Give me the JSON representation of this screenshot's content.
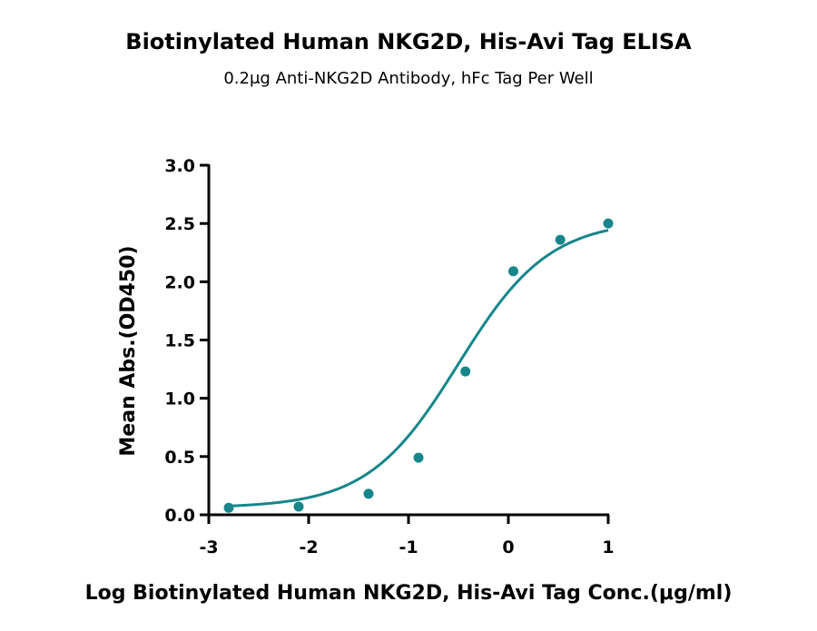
{
  "chart_data": {
    "type": "scatter",
    "title": "Biotinylated Human NKG2D, His-Avi Tag ELISA",
    "subtitle": "0.2μg Anti-NKG2D Antibody, hFc Tag Per Well",
    "xlabel": "Log Biotinylated Human NKG2D, His-Avi Tag Conc.(μg/ml)",
    "ylabel": "Mean Abs.(OD450)",
    "xlim": [
      -3,
      1
    ],
    "ylim": [
      0,
      3.0
    ],
    "x_ticks": [
      "-3",
      "-2",
      "-1",
      "0",
      "1"
    ],
    "y_ticks": [
      "0.0",
      "0.5",
      "1.0",
      "1.5",
      "2.0",
      "2.5",
      "3.0"
    ],
    "grid": false,
    "color": "#16868a",
    "fit": "4PL sigmoidal curve",
    "series": [
      {
        "x": [
          -2.8,
          -2.1,
          -1.4,
          -0.9,
          -0.43,
          0.05,
          0.52,
          1.0
        ],
        "y": [
          0.06,
          0.07,
          0.18,
          0.49,
          1.23,
          2.09,
          2.36,
          2.5
        ]
      }
    ]
  }
}
